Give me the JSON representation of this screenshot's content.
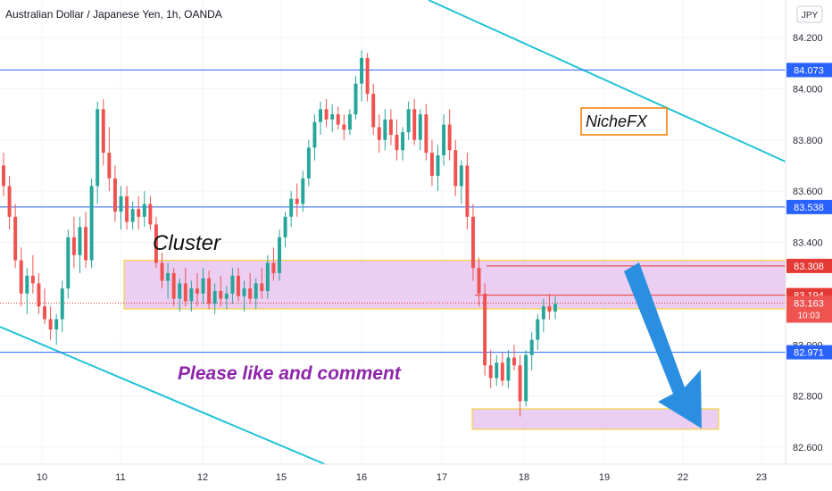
{
  "title": "Australian Dollar / Japanese Yen, 1h, OANDA",
  "currency_badge": "JPY",
  "colors": {
    "up": "#26a69a",
    "down": "#ef5350",
    "trendline": "#22c3d6",
    "hline": "#2962ff",
    "red_line": "#e53935",
    "zone_fill": "#e7c6ef",
    "zone_stroke": "#f5d442",
    "arrow": "#2a8fe0",
    "comment_text": "#8e24aa",
    "nichefx_border": "#f57c00"
  },
  "annotations": {
    "cluster_label": "Cluster",
    "nichefx_label": "NicheFX",
    "comment_label": "Please like and comment"
  },
  "chart_data": {
    "type": "candlestick",
    "title": "Australian Dollar / Japanese Yen, 1h, OANDA",
    "y_ticks": [
      "84.200",
      "84.000",
      "83.800",
      "83.600",
      "83.400",
      "83.000",
      "82.800",
      "82.600"
    ],
    "y_tick_values": [
      84.2,
      84.0,
      83.8,
      83.6,
      83.4,
      83.0,
      82.8,
      82.6
    ],
    "ylim": [
      82.55,
      84.28
    ],
    "x_ticks": [
      "10",
      "11",
      "12",
      "15",
      "16",
      "17",
      "18",
      "19",
      "22",
      "23"
    ],
    "price_levels": [
      {
        "value": 84.073,
        "label": "84.073",
        "kind": "horizontal"
      },
      {
        "value": 83.538,
        "label": "83.538",
        "kind": "horizontal"
      },
      {
        "value": 83.308,
        "label": "83.308",
        "kind": "red"
      },
      {
        "value": 83.194,
        "label": "83.194",
        "kind": "red"
      },
      {
        "value": 82.971,
        "label": "82.971",
        "kind": "horizontal"
      }
    ],
    "last_price": {
      "value": 83.163,
      "label": "83.163",
      "countdown": "10:03"
    },
    "zones": [
      {
        "name": "cluster-zone",
        "y_top": 83.33,
        "y_bottom": 83.14
      },
      {
        "name": "target-zone",
        "y_top": 82.75,
        "y_bottom": 82.67
      }
    ],
    "candles": [
      [
        83.7,
        83.75,
        83.58,
        83.62
      ],
      [
        83.62,
        83.66,
        83.45,
        83.5
      ],
      [
        83.5,
        83.55,
        83.3,
        83.33
      ],
      [
        83.33,
        83.38,
        83.15,
        83.2
      ],
      [
        83.2,
        83.3,
        83.12,
        83.27
      ],
      [
        83.27,
        83.35,
        83.2,
        83.24
      ],
      [
        83.24,
        83.28,
        83.12,
        83.15
      ],
      [
        83.15,
        83.22,
        83.08,
        83.1
      ],
      [
        83.1,
        83.15,
        83.02,
        83.06
      ],
      [
        83.06,
        83.12,
        83.0,
        83.1
      ],
      [
        83.1,
        83.25,
        83.05,
        83.22
      ],
      [
        83.22,
        83.45,
        83.18,
        83.42
      ],
      [
        83.42,
        83.5,
        83.3,
        83.35
      ],
      [
        83.35,
        83.5,
        83.28,
        83.46
      ],
      [
        83.46,
        83.52,
        83.3,
        83.33
      ],
      [
        83.33,
        83.65,
        83.3,
        83.62
      ],
      [
        83.62,
        83.95,
        83.55,
        83.92
      ],
      [
        83.92,
        83.96,
        83.7,
        83.75
      ],
      [
        83.75,
        83.85,
        83.6,
        83.65
      ],
      [
        83.65,
        83.7,
        83.48,
        83.52
      ],
      [
        83.52,
        83.62,
        83.45,
        83.58
      ],
      [
        83.58,
        83.62,
        83.45,
        83.48
      ],
      [
        83.48,
        83.56,
        83.45,
        83.53
      ],
      [
        83.53,
        83.58,
        83.45,
        83.5
      ],
      [
        83.5,
        83.6,
        83.46,
        83.55
      ],
      [
        83.55,
        83.58,
        83.45,
        83.47
      ],
      [
        83.47,
        83.5,
        83.3,
        83.32
      ],
      [
        83.32,
        83.36,
        83.22,
        83.25
      ],
      [
        83.25,
        83.32,
        83.18,
        83.28
      ],
      [
        83.28,
        83.3,
        83.15,
        83.18
      ],
      [
        83.18,
        83.26,
        83.13,
        83.24
      ],
      [
        83.24,
        83.3,
        83.15,
        83.17
      ],
      [
        83.17,
        83.25,
        83.13,
        83.22
      ],
      [
        83.22,
        83.28,
        83.15,
        83.2
      ],
      [
        83.2,
        83.3,
        83.16,
        83.26
      ],
      [
        83.26,
        83.29,
        83.14,
        83.16
      ],
      [
        83.16,
        83.24,
        83.12,
        83.21
      ],
      [
        83.21,
        83.27,
        83.15,
        83.18
      ],
      [
        83.18,
        83.23,
        83.14,
        83.2
      ],
      [
        83.2,
        83.3,
        83.16,
        83.27
      ],
      [
        83.27,
        83.3,
        83.17,
        83.19
      ],
      [
        83.19,
        83.25,
        83.13,
        83.22
      ],
      [
        83.22,
        83.28,
        83.16,
        83.18
      ],
      [
        83.18,
        83.26,
        83.14,
        83.24
      ],
      [
        83.24,
        83.3,
        83.18,
        83.21
      ],
      [
        83.21,
        83.35,
        83.18,
        83.32
      ],
      [
        83.32,
        83.38,
        83.25,
        83.28
      ],
      [
        83.28,
        83.45,
        83.25,
        83.42
      ],
      [
        83.42,
        83.52,
        83.38,
        83.5
      ],
      [
        83.5,
        83.6,
        83.46,
        83.57
      ],
      [
        83.57,
        83.63,
        83.5,
        83.55
      ],
      [
        83.55,
        83.68,
        83.52,
        83.65
      ],
      [
        83.65,
        83.8,
        83.62,
        83.77
      ],
      [
        83.77,
        83.9,
        83.72,
        83.87
      ],
      [
        83.87,
        83.95,
        83.82,
        83.92
      ],
      [
        83.92,
        83.96,
        83.85,
        83.88
      ],
      [
        83.88,
        83.94,
        83.83,
        83.9
      ],
      [
        83.9,
        83.93,
        83.84,
        83.86
      ],
      [
        83.86,
        83.9,
        83.8,
        83.84
      ],
      [
        83.84,
        83.92,
        83.82,
        83.9
      ],
      [
        83.9,
        84.05,
        83.88,
        84.02
      ],
      [
        84.02,
        84.15,
        83.95,
        84.12
      ],
      [
        84.12,
        84.14,
        83.95,
        83.98
      ],
      [
        83.98,
        84.02,
        83.82,
        83.85
      ],
      [
        83.85,
        83.9,
        83.75,
        83.8
      ],
      [
        83.8,
        83.92,
        83.76,
        83.88
      ],
      [
        83.88,
        83.92,
        83.78,
        83.82
      ],
      [
        83.82,
        83.88,
        83.72,
        83.76
      ],
      [
        83.76,
        83.85,
        83.72,
        83.83
      ],
      [
        83.83,
        83.95,
        83.8,
        83.92
      ],
      [
        83.92,
        83.96,
        83.78,
        83.8
      ],
      [
        83.8,
        83.92,
        83.76,
        83.9
      ],
      [
        83.9,
        83.94,
        83.72,
        83.75
      ],
      [
        83.75,
        83.8,
        83.62,
        83.66
      ],
      [
        83.66,
        83.78,
        83.6,
        83.74
      ],
      [
        83.74,
        83.9,
        83.7,
        83.86
      ],
      [
        83.86,
        83.92,
        83.72,
        83.76
      ],
      [
        83.76,
        83.8,
        83.58,
        83.62
      ],
      [
        83.62,
        83.72,
        83.55,
        83.7
      ],
      [
        83.7,
        83.75,
        83.45,
        83.5
      ],
      [
        83.5,
        83.55,
        83.25,
        83.3
      ],
      [
        83.3,
        83.34,
        83.15,
        83.2
      ],
      [
        83.2,
        83.24,
        82.88,
        82.92
      ],
      [
        82.92,
        82.98,
        82.83,
        82.87
      ],
      [
        82.87,
        82.96,
        82.84,
        82.93
      ],
      [
        82.93,
        82.97,
        82.84,
        82.86
      ],
      [
        82.86,
        82.98,
        82.83,
        82.95
      ],
      [
        82.95,
        83.0,
        82.9,
        82.92
      ],
      [
        82.92,
        82.96,
        82.72,
        82.78
      ],
      [
        82.78,
        82.98,
        82.76,
        82.96
      ],
      [
        82.96,
        83.05,
        82.9,
        83.02
      ],
      [
        83.02,
        83.12,
        82.98,
        83.1
      ],
      [
        83.1,
        83.18,
        83.05,
        83.15
      ],
      [
        83.15,
        83.2,
        83.1,
        83.13
      ],
      [
        83.13,
        83.19,
        83.1,
        83.16
      ]
    ]
  }
}
